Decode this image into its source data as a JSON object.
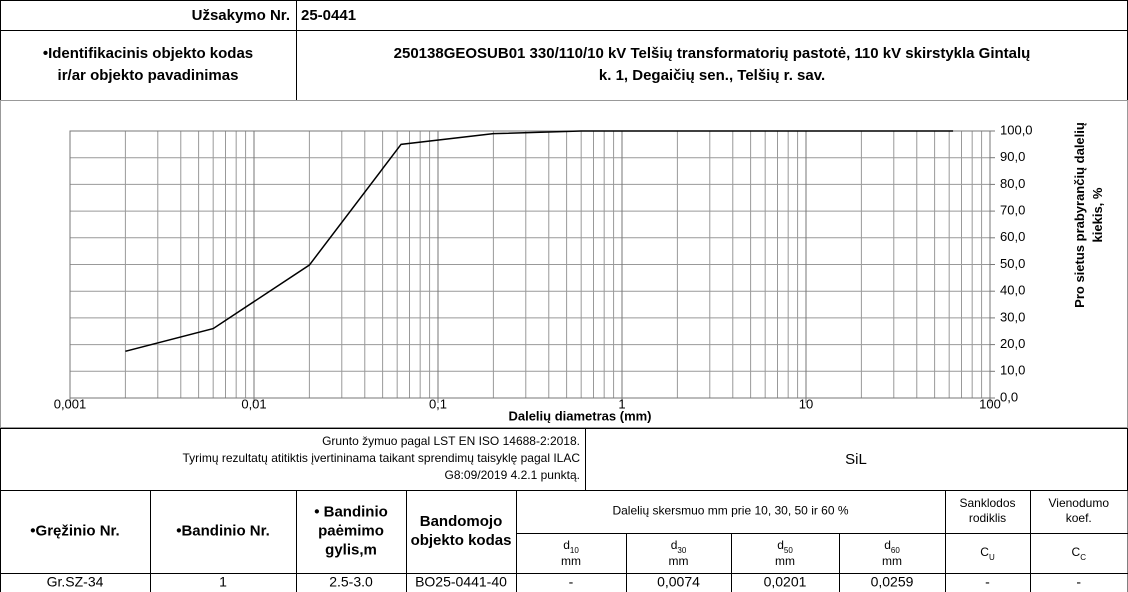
{
  "header": {
    "order_label": "Užsakymo Nr.",
    "order_no": "25-0441",
    "id_label": [
      "•Identifikacinis objekto kodas",
      "ir/ar objekto pavadinimas"
    ],
    "id_value": [
      "250138GEOSUB01 330/110/10 kV Telšių transformatorių pastotė, 110 kV skirstykla Gintalų",
      "k. 1, Degaičių sen., Telšių r. sav."
    ]
  },
  "chart_data": {
    "type": "line",
    "x": [
      0.002,
      0.006,
      0.02,
      0.063,
      0.2,
      0.6,
      63
    ],
    "values": [
      17.5,
      26,
      49.8,
      95,
      99,
      100,
      100
    ],
    "color": "#000000",
    "log_x": true,
    "grid": true,
    "xlim": [
      0.001,
      100
    ],
    "xticks": [
      {
        "value": 0.001,
        "label": "0,001"
      },
      {
        "value": 0.01,
        "label": "0,01"
      },
      {
        "value": 0.1,
        "label": "0,1"
      },
      1,
      10,
      100
    ],
    "ylim": [
      0,
      100
    ],
    "yticks": [
      {
        "value": 0,
        "label": "0,0"
      },
      {
        "value": 10,
        "label": "10,0"
      },
      {
        "value": 20,
        "label": "20,0"
      },
      {
        "value": 30,
        "label": "30,0"
      },
      {
        "value": 40,
        "label": "40,0"
      },
      {
        "value": 50,
        "label": "50,0"
      },
      {
        "value": 60,
        "label": "60,0"
      },
      {
        "value": 70,
        "label": "70,0"
      },
      {
        "value": 80,
        "label": "80,0"
      },
      {
        "value": 90,
        "label": "90,0"
      },
      {
        "value": 100,
        "label": "100,0"
      }
    ],
    "xlabel": "Dalelių diametras (mm)",
    "ylabel": [
      "Pro sietus prabyrančių dalelių",
      "kiekis, %"
    ]
  },
  "classification": {
    "note": [
      "Grunto žymuo pagal LST EN ISO 14688-2:2018.",
      "Tyrimų rezultatų atitiktis įvertininama taikant sprendimų taisyklę pagal ILAC",
      "G8:09/2019 4.2.1 punktą."
    ],
    "value": "SiL"
  },
  "table": {
    "headers": [
      [
        "•Gręžinio Nr."
      ],
      [
        "•Bandinio Nr."
      ],
      [
        "• Bandinio",
        "paėmimo",
        "gylis,m"
      ],
      [
        "Bandomojo",
        "objekto kodas"
      ]
    ],
    "group_header": "Dalelių skersmuo mm prie 10, 30, 50 ir 60 %",
    "side_headers": [
      [
        "Sanklodos",
        "rodiklis"
      ],
      [
        "Vienodumo",
        "koef."
      ]
    ],
    "sub_headers": [
      {
        "symbol": "d",
        "sub": "10",
        "unit": "mm"
      },
      {
        "symbol": "d",
        "sub": "30",
        "unit": "mm"
      },
      {
        "symbol": "d",
        "sub": "50",
        "unit": "mm"
      },
      {
        "symbol": "d",
        "sub": "60",
        "unit": "mm"
      },
      {
        "symbol": "C",
        "sub": "U"
      },
      {
        "symbol": "C",
        "sub": "C"
      }
    ],
    "rows": [
      [
        "Gr.SZ-34",
        "1",
        "2.5-3.0",
        "BO25-0441-40",
        "-",
        "0,0074",
        "0,0201",
        "0,0259",
        "-",
        "-"
      ]
    ]
  }
}
